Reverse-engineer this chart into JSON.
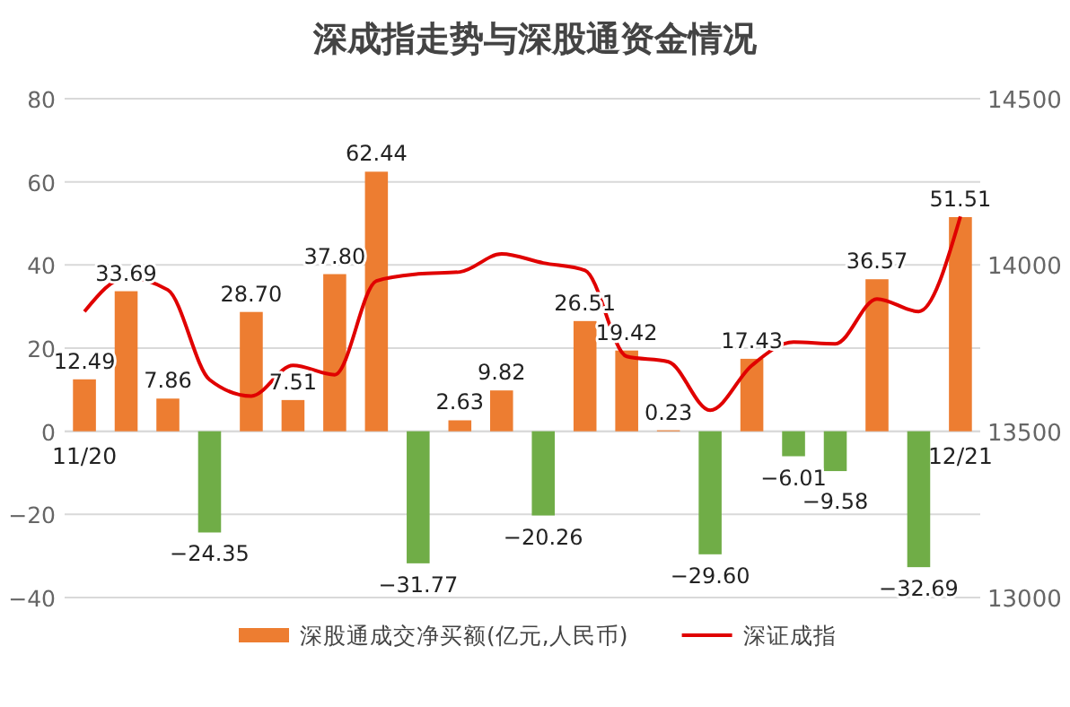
{
  "chart_data": {
    "type": "bar",
    "title": "深成指走势与深股通资金情况",
    "categories": [
      "11/20",
      null,
      null,
      null,
      null,
      null,
      null,
      null,
      null,
      null,
      null,
      null,
      null,
      null,
      null,
      null,
      null,
      null,
      null,
      null,
      null,
      "12/21"
    ],
    "series": [
      {
        "name": "深股通成交净买额(亿元,人民币)",
        "color": "#ed7d31",
        "colors": [
          "#ed7d31",
          "#ed7d31",
          "#ed7d31",
          "#70ad47",
          "#ed7d31",
          "#ed7d31",
          "#ed7d31",
          "#ed7d31",
          "#70ad47",
          "#ed7d31",
          "#ed7d31",
          "#70ad47",
          "#ed7d31",
          "#ed7d31",
          "#ed7d31",
          "#70ad47",
          "#ed7d31",
          "#70ad47",
          "#70ad47",
          "#ed7d31",
          "#70ad47",
          "#ed7d31"
        ],
        "values": [
          12.49,
          33.69,
          7.86,
          -24.35,
          28.7,
          7.51,
          37.8,
          62.44,
          -31.77,
          2.63,
          9.82,
          -20.26,
          26.51,
          19.42,
          0.23,
          -29.6,
          17.43,
          -6.01,
          -9.58,
          36.57,
          -32.69,
          51.51
        ],
        "value_labels": [
          "12.49",
          "33.69",
          "7.86",
          "−24.35",
          "28.70",
          "7.51",
          "37.80",
          "62.44",
          "−31.77",
          "2.63",
          "9.82",
          "−20.26",
          "26.51",
          "19.42",
          "0.23",
          "−29.60",
          "17.43",
          "−6.01",
          "−9.58",
          "36.57",
          "−32.69",
          "51.51"
        ]
      },
      {
        "name": "深证成指",
        "type": "line",
        "axis": "y2",
        "color": "#e00000",
        "values": [
          13860,
          13962,
          13925,
          13655,
          13606,
          13698,
          13670,
          13952,
          13973,
          13979,
          14033,
          14006,
          13984,
          13725,
          13709,
          13563,
          13698,
          13768,
          13763,
          13898,
          13860,
          14146
        ]
      }
    ],
    "ylim": [
      -40,
      80
    ],
    "yticks": [
      -40,
      -20,
      0,
      20,
      40,
      60,
      80
    ],
    "y2lim": [
      13000,
      14500
    ],
    "y2ticks": [
      13000,
      13500,
      14000,
      14500
    ],
    "grid": "y",
    "legend": "bottom",
    "marker": "none",
    "line_style": "solid"
  }
}
